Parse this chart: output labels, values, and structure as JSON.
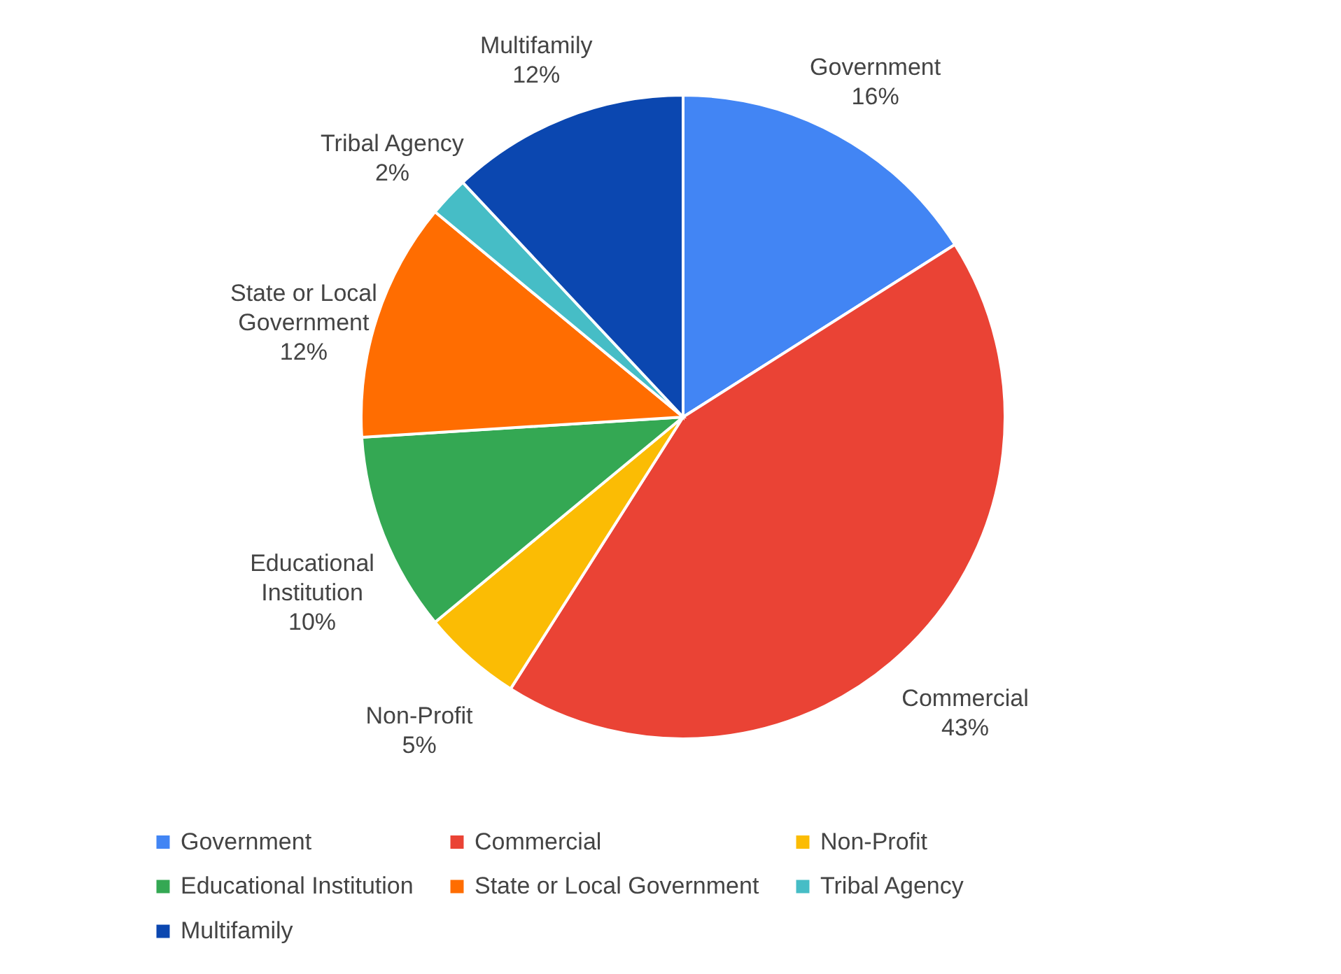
{
  "chart_data": {
    "type": "pie",
    "categories": [
      "Government",
      "Commercial",
      "Non-Profit",
      "Educational Institution",
      "State or Local Government",
      "Tribal Agency",
      "Multifamily"
    ],
    "values": [
      16,
      43,
      5,
      10,
      12,
      2,
      12
    ],
    "value_labels": [
      "16%",
      "43%",
      "5%",
      "10%",
      "12%",
      "2%",
      "12%"
    ],
    "colors": [
      "#4285f4",
      "#ea4335",
      "#fbbc04",
      "#34a853",
      "#ff6d01",
      "#46bdc6",
      "#0b47b0"
    ],
    "legend": "bottom"
  }
}
